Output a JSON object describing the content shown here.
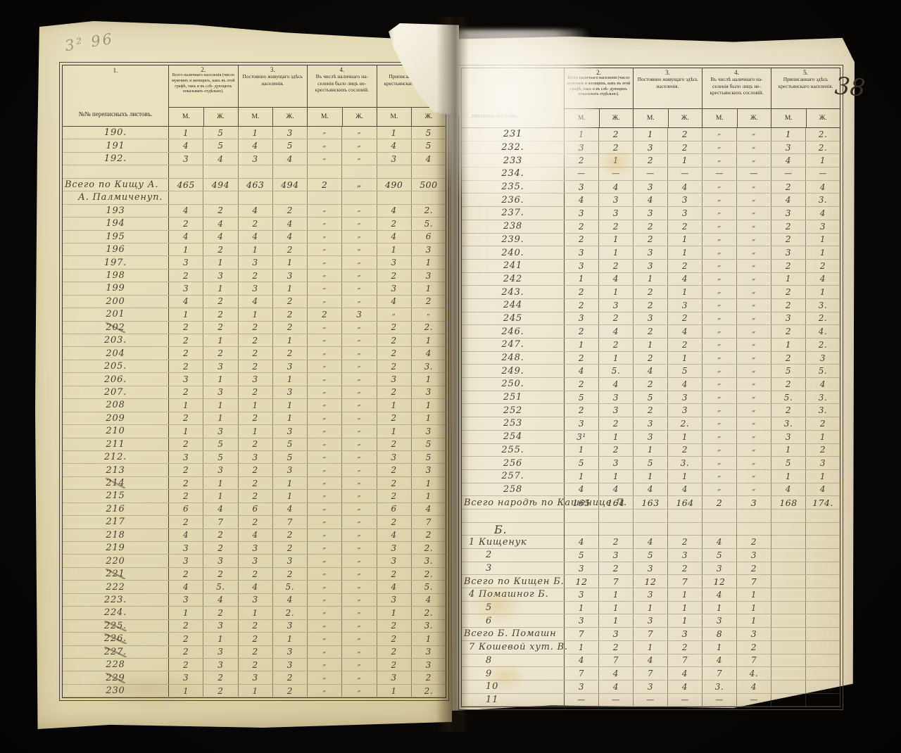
{
  "folio_number": "38",
  "pencil_note": "3² 96",
  "columns": {
    "col1_num": "1.",
    "col1_num_right": "",
    "col1_label_left": "№№ переписныхъ листовъ.",
    "col1_label_right": "…писныхъ листовъ.",
    "col2_num": "2.",
    "col2_label": "Всего наличнаго населенія (число мужчинъ и женщинъ, какъ въ этой графѣ, такъ и въ слѣ- дующихъ показывать отдѣльно).",
    "col3_num": "3.",
    "col3_label": "Постоянно живущаго здѣсь населенія.",
    "col4_num": "4.",
    "col4_label": "Въ числѣ наличнаго на- селенія было лицъ не- крестьянскихъ сословій.",
    "col5_num": "5.",
    "col5_label": "Приписаннаго здѣсь крестьянскаго населенія.",
    "m": "М.",
    "zh": "Ж."
  },
  "left_page": {
    "rows": [
      {
        "n": "190.",
        "v": [
          "1",
          "5",
          "1",
          "3",
          "„",
          "„",
          "1",
          "5"
        ]
      },
      {
        "n": "191",
        "v": [
          "4",
          "5",
          "4",
          "5",
          "„",
          "„",
          "4",
          "5"
        ]
      },
      {
        "n": "192.",
        "v": [
          "3",
          "4",
          "3",
          "4",
          "„",
          "„",
          "3",
          "4"
        ]
      },
      {
        "n": "",
        "t": "b",
        "v": []
      },
      {
        "n": "Всего по Кищу А.",
        "t": "s",
        "v": [
          "465",
          "494",
          "463",
          "494",
          "2",
          "„",
          "490",
          "500"
        ]
      },
      {
        "n": "А. Палмиченуп.",
        "t": "l",
        "v": []
      },
      {
        "n": "193",
        "v": [
          "4",
          "2",
          "4",
          "2",
          "„",
          "„",
          "4",
          "2."
        ]
      },
      {
        "n": "194",
        "v": [
          "2",
          "4",
          "2",
          "4",
          "„",
          "„",
          "2",
          "5."
        ]
      },
      {
        "n": "195",
        "v": [
          "4",
          "4",
          "4",
          "4",
          "„",
          "„",
          "4",
          "6"
        ]
      },
      {
        "n": "196",
        "v": [
          "1",
          "2",
          "1",
          "2",
          "„",
          "„",
          "1",
          "3"
        ]
      },
      {
        "n": "197.",
        "v": [
          "3",
          "1",
          "3",
          "1",
          "„",
          "„",
          "3",
          "1"
        ]
      },
      {
        "n": "198",
        "v": [
          "2",
          "3",
          "2",
          "3",
          "„",
          "„",
          "2",
          "3"
        ]
      },
      {
        "n": "199",
        "v": [
          "3",
          "1",
          "3",
          "1",
          "„",
          "„",
          "3",
          "1"
        ]
      },
      {
        "n": "200",
        "v": [
          "4",
          "2",
          "4",
          "2",
          "„",
          "„",
          "4",
          "2"
        ]
      },
      {
        "n": "201",
        "v": [
          "1",
          "2",
          "1",
          "2",
          "2",
          "3",
          "„",
          "„"
        ]
      },
      {
        "n": "202",
        "x": 1,
        "v": [
          "2",
          "2",
          "2",
          "2",
          "„",
          "„",
          "2",
          "2."
        ]
      },
      {
        "n": "203.",
        "v": [
          "2",
          "1",
          "2",
          "1",
          "„",
          "„",
          "2",
          "1"
        ]
      },
      {
        "n": "204",
        "v": [
          "2",
          "2",
          "2",
          "2",
          "„",
          "„",
          "2",
          "4"
        ]
      },
      {
        "n": "205.",
        "v": [
          "2",
          "3",
          "2",
          "3",
          "„",
          "„",
          "2",
          "3."
        ]
      },
      {
        "n": "206.",
        "v": [
          "3",
          "1",
          "3",
          "1",
          "„",
          "„",
          "3",
          "1"
        ]
      },
      {
        "n": "207.",
        "v": [
          "2",
          "3",
          "2",
          "3",
          "„",
          "„",
          "2",
          "3"
        ]
      },
      {
        "n": "208",
        "v": [
          "1",
          "1",
          "1",
          "1",
          "„",
          "„",
          "1",
          "1"
        ]
      },
      {
        "n": "209",
        "v": [
          "2",
          "1",
          "2",
          "1",
          "„",
          "„",
          "2",
          "1"
        ]
      },
      {
        "n": "210",
        "v": [
          "1",
          "3",
          "1",
          "3",
          "„",
          "„",
          "1",
          "3"
        ]
      },
      {
        "n": "211",
        "v": [
          "2",
          "5",
          "2",
          "5",
          "„",
          "„",
          "2",
          "5"
        ]
      },
      {
        "n": "212.",
        "v": [
          "3",
          "5",
          "3",
          "5",
          "„",
          "„",
          "3",
          "5"
        ]
      },
      {
        "n": "213",
        "v": [
          "2",
          "3",
          "2",
          "3",
          "„",
          "„",
          "2",
          "3"
        ]
      },
      {
        "n": "214",
        "x": 1,
        "v": [
          "2",
          "1",
          "2",
          "1",
          "„",
          "„",
          "2",
          "1"
        ]
      },
      {
        "n": "215",
        "v": [
          "2",
          "1",
          "2",
          "1",
          "„",
          "„",
          "2",
          "1"
        ]
      },
      {
        "n": "216",
        "v": [
          "6",
          "4",
          "6",
          "4",
          "„",
          "„",
          "6",
          "4"
        ]
      },
      {
        "n": "217",
        "v": [
          "2",
          "7",
          "2",
          "7",
          "„",
          "„",
          "2",
          "7"
        ]
      },
      {
        "n": "218",
        "v": [
          "4",
          "2",
          "4",
          "2",
          "„",
          "„",
          "4",
          "2"
        ]
      },
      {
        "n": "219",
        "v": [
          "3",
          "2",
          "3",
          "2",
          "„",
          "„",
          "3",
          "2."
        ]
      },
      {
        "n": "220",
        "v": [
          "3",
          "3",
          "3",
          "3",
          "„",
          "„",
          "3",
          "3."
        ]
      },
      {
        "n": "221",
        "x": 1,
        "v": [
          "2",
          "2",
          "2",
          "2",
          "„",
          "„",
          "2",
          "2."
        ]
      },
      {
        "n": "222",
        "v": [
          "4",
          "5.",
          "4",
          "5.",
          "„",
          "„",
          "4",
          "5."
        ]
      },
      {
        "n": "223.",
        "v": [
          "3",
          "4",
          "3",
          "4",
          "„",
          "„",
          "3",
          "4"
        ]
      },
      {
        "n": "224.",
        "v": [
          "1",
          "2",
          "1",
          "2.",
          "„",
          "„",
          "1",
          "2."
        ]
      },
      {
        "n": "225.",
        "x": 1,
        "v": [
          "2",
          "3",
          "2",
          "3",
          "„",
          "„",
          "2",
          "3."
        ]
      },
      {
        "n": "226.",
        "x": 1,
        "v": [
          "2",
          "1",
          "2",
          "1",
          "„",
          "„",
          "2",
          "1"
        ]
      },
      {
        "n": "227.",
        "x": 1,
        "v": [
          "2",
          "3",
          "2",
          "3",
          "„",
          "„",
          "2",
          "3"
        ]
      },
      {
        "n": "228",
        "v": [
          "2",
          "3",
          "2",
          "3",
          "„",
          "„",
          "2",
          "3"
        ]
      },
      {
        "n": "229",
        "x": 1,
        "v": [
          "3",
          "2",
          "3",
          "2",
          "„",
          "„",
          "3",
          "2"
        ]
      },
      {
        "n": "230",
        "v": [
          "1",
          "2",
          "1",
          "2",
          "„",
          "„",
          "1",
          "2."
        ]
      }
    ]
  },
  "right_page": {
    "rows": [
      {
        "n": "231",
        "v": [
          "1",
          "2",
          "1",
          "2",
          "„",
          "„",
          "1",
          "2."
        ]
      },
      {
        "n": "232.",
        "v": [
          "3",
          "2",
          "3",
          "2",
          "„",
          "„",
          "3",
          "2."
        ]
      },
      {
        "n": "233",
        "v": [
          "2",
          "1",
          "2",
          "1",
          "„",
          "„",
          "4",
          "1"
        ]
      },
      {
        "n": "234.",
        "v": [
          "—",
          "—",
          "—",
          "—",
          "—",
          "—",
          "—",
          "—"
        ]
      },
      {
        "n": "235.",
        "v": [
          "3",
          "4",
          "3",
          "4",
          "„",
          "„",
          "2",
          "4"
        ]
      },
      {
        "n": "236.",
        "v": [
          "4",
          "3",
          "4",
          "3",
          "„",
          "„",
          "4",
          "3."
        ]
      },
      {
        "n": "237.",
        "v": [
          "3",
          "3",
          "3",
          "3",
          "„",
          "„",
          "3",
          "4"
        ]
      },
      {
        "n": "238",
        "v": [
          "2",
          "2",
          "2",
          "2",
          "„",
          "„",
          "2",
          "3"
        ]
      },
      {
        "n": "239.",
        "v": [
          "2",
          "1",
          "2",
          "1",
          "„",
          "„",
          "2",
          "1"
        ]
      },
      {
        "n": "240.",
        "v": [
          "3",
          "1",
          "3",
          "1",
          "„",
          "„",
          "3",
          "1"
        ]
      },
      {
        "n": "241",
        "v": [
          "3",
          "2",
          "3",
          "2",
          "„",
          "„",
          "2",
          "2"
        ]
      },
      {
        "n": "242",
        "v": [
          "1",
          "4",
          "1",
          "4",
          "„",
          "„",
          "1",
          "4"
        ]
      },
      {
        "n": "243.",
        "v": [
          "2",
          "1",
          "2",
          "1",
          "„",
          "„",
          "2",
          "1"
        ]
      },
      {
        "n": "244",
        "v": [
          "2",
          "3",
          "2",
          "3",
          "„",
          "„",
          "2",
          "3."
        ]
      },
      {
        "n": "245",
        "v": [
          "3",
          "2",
          "3",
          "2",
          "„",
          "„",
          "3",
          "2."
        ]
      },
      {
        "n": "246.",
        "v": [
          "2",
          "4",
          "2",
          "4",
          "„",
          "„",
          "2",
          "4."
        ]
      },
      {
        "n": "247.",
        "v": [
          "1",
          "2",
          "1",
          "2",
          "„",
          "„",
          "1",
          "2."
        ]
      },
      {
        "n": "248.",
        "v": [
          "2",
          "1",
          "2",
          "1",
          "„",
          "„",
          "2",
          "3"
        ]
      },
      {
        "n": "249.",
        "v": [
          "4",
          "5.",
          "4",
          "5",
          "„",
          "„",
          "5",
          "5."
        ]
      },
      {
        "n": "250.",
        "v": [
          "2",
          "4",
          "2",
          "4",
          "„",
          "„",
          "2",
          "4"
        ]
      },
      {
        "n": "251",
        "v": [
          "5",
          "3",
          "5",
          "3",
          "„",
          "„",
          "5.",
          "3."
        ]
      },
      {
        "n": "252",
        "v": [
          "2",
          "3",
          "2",
          "3",
          "„",
          "„",
          "2",
          "3."
        ]
      },
      {
        "n": "253",
        "v": [
          "3",
          "2",
          "3",
          "2.",
          "„",
          "„",
          "3.",
          "2"
        ]
      },
      {
        "n": "254",
        "v": [
          "3¹",
          "1",
          "3",
          "1",
          "„",
          "„",
          "3",
          "1"
        ]
      },
      {
        "n": "255.",
        "v": [
          "1",
          "2",
          "1",
          "2",
          "„",
          "„",
          "1",
          "2"
        ]
      },
      {
        "n": "256",
        "v": [
          "5",
          "3",
          "5",
          "3.",
          "„",
          "„",
          "5",
          "3"
        ]
      },
      {
        "n": "257.",
        "v": [
          "1",
          "1",
          "1",
          "1",
          "„",
          "„",
          "1",
          "1"
        ]
      },
      {
        "n": "258",
        "v": [
          "4",
          "4",
          "4",
          "4",
          "„",
          "„",
          "4",
          "4"
        ]
      },
      {
        "n": "Всего народѣ по Кашенице Л.",
        "t": "s",
        "v": [
          "165",
          "164",
          "163",
          "164",
          "2",
          "3",
          "168",
          "174."
        ]
      },
      {
        "n": "",
        "t": "b",
        "v": []
      },
      {
        "n": "Б.",
        "t": "sec",
        "v": []
      },
      {
        "n": "1 Кищенук",
        "t": "s2",
        "v": [
          "4",
          "2",
          "4",
          "2",
          "4",
          "2",
          "",
          ""
        ]
      },
      {
        "n": "2",
        "t": "n2",
        "v": [
          "5",
          "3",
          "5",
          "3",
          "5",
          "3",
          "",
          ""
        ]
      },
      {
        "n": "3",
        "t": "n2",
        "v": [
          "3",
          "2",
          "3",
          "2",
          "3",
          "2",
          "",
          ""
        ]
      },
      {
        "n": "Всего по Кищен Б.",
        "t": "s",
        "v": [
          "12",
          "7",
          "12",
          "7",
          "12",
          "7",
          "",
          ""
        ]
      },
      {
        "n": "4 Помашног Б.",
        "t": "s2",
        "v": [
          "3",
          "1",
          "3",
          "1",
          "4",
          "1",
          "",
          ""
        ]
      },
      {
        "n": "5",
        "t": "n2",
        "v": [
          "1",
          "1",
          "1",
          "1",
          "1",
          "1",
          "",
          ""
        ]
      },
      {
        "n": "6",
        "t": "n2",
        "v": [
          "3",
          "1",
          "3",
          "1",
          "3",
          "1",
          "",
          ""
        ]
      },
      {
        "n": "Всего Б. Помашн",
        "t": "s",
        "v": [
          "7",
          "3",
          "7",
          "3",
          "8",
          "3",
          "",
          ""
        ]
      },
      {
        "n": "7 Кошевой хут. В.",
        "t": "s2",
        "v": [
          "1",
          "2",
          "1",
          "2",
          "1",
          "2",
          "",
          ""
        ]
      },
      {
        "n": "8",
        "t": "n2",
        "v": [
          "4",
          "7",
          "4",
          "7",
          "4",
          "7",
          "",
          ""
        ]
      },
      {
        "n": "9",
        "t": "n2",
        "v": [
          "7",
          "4",
          "7",
          "4",
          "7",
          "4.",
          "",
          ""
        ]
      },
      {
        "n": "10",
        "t": "n2",
        "v": [
          "3",
          "4",
          "3",
          "4",
          "3.",
          "4",
          "",
          ""
        ]
      },
      {
        "n": "11",
        "t": "n2",
        "v": [
          "—",
          "—",
          "—",
          "—",
          "—",
          "—",
          "",
          ""
        ]
      }
    ]
  },
  "colors": {
    "paper_left": "#e6deb7",
    "paper_right": "#ece6d0",
    "ink": "#4b4232",
    "printed_line": "#4c463a",
    "background": "#0a0806"
  }
}
